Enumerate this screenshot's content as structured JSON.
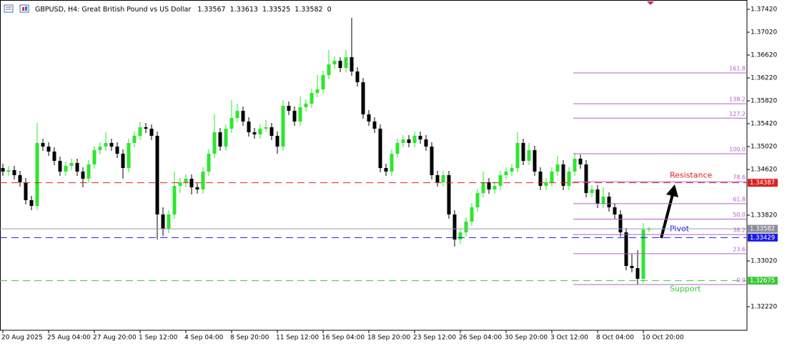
{
  "chart_data": {
    "type": "candlestick",
    "title": "GBPUSD, H4:  Great British Pound vs US Dollar",
    "spread": 0,
    "up_color": "#2ee62e",
    "down_color": "#000000",
    "ylim": [
      1.31808,
      1.37583
    ],
    "yticks": [
      {
        "value": 1.3742,
        "label": "1.37420"
      },
      {
        "value": 1.3702,
        "label": "1.37020"
      },
      {
        "value": 1.3662,
        "label": "1.36620"
      },
      {
        "value": 1.3622,
        "label": "1.36220"
      },
      {
        "value": 1.3582,
        "label": "1.35820"
      },
      {
        "value": 1.3542,
        "label": "1.35420"
      },
      {
        "value": 1.3502,
        "label": "1.35020"
      },
      {
        "value": 1.3462,
        "label": "1.34620"
      },
      {
        "value": 1.3382,
        "label": "1.33820"
      },
      {
        "value": 1.3302,
        "label": "1.33020"
      },
      {
        "value": 1.3222,
        "label": "1.32220"
      }
    ],
    "xticks": [
      {
        "value": 0,
        "label": "20 Aug 2025"
      },
      {
        "value": 8,
        "label": "25 Aug 04:00"
      },
      {
        "value": 16,
        "label": "27 Aug 20:00"
      },
      {
        "value": 24,
        "label": "1 Sep 12:00"
      },
      {
        "value": 32,
        "label": "4 Sep 04:00"
      },
      {
        "value": 40,
        "label": "8 Sep 20:00"
      },
      {
        "value": 48,
        "label": "11 Sep 12:00"
      },
      {
        "value": 56,
        "label": "16 Sep 04:00"
      },
      {
        "value": 64,
        "label": "18 Sep 20:00"
      },
      {
        "value": 72,
        "label": "23 Sep 12:00"
      },
      {
        "value": 80,
        "label": "26 Sep 04:00"
      },
      {
        "value": 88,
        "label": "30 Sep 20:00"
      },
      {
        "value": 96,
        "label": "3 Oct 12:00"
      },
      {
        "value": 104,
        "label": "8 Oct 04:00"
      },
      {
        "value": 112,
        "label": "10 Oct 20:00"
      }
    ],
    "candles": [
      [
        1.34645,
        1.3472,
        1.34508,
        1.34583
      ],
      [
        1.34583,
        1.34683,
        1.34508,
        1.34608
      ],
      [
        1.34608,
        1.34683,
        1.34445,
        1.3452
      ],
      [
        1.3452,
        1.34595,
        1.3432,
        1.34395
      ],
      [
        1.34395,
        1.3447,
        1.34008,
        1.34083
      ],
      [
        1.34083,
        1.34158,
        1.33908,
        1.33983
      ],
      [
        1.33983,
        1.35433,
        1.33908,
        1.35083
      ],
      [
        1.35083,
        1.35158,
        1.34945,
        1.3502
      ],
      [
        1.3502,
        1.35095,
        1.34858,
        1.34933
      ],
      [
        1.34933,
        1.35008,
        1.34695,
        1.3477
      ],
      [
        1.3477,
        1.34845,
        1.34508,
        1.34583
      ],
      [
        1.34583,
        1.34758,
        1.34508,
        1.34683
      ],
      [
        1.34683,
        1.34808,
        1.34608,
        1.34733
      ],
      [
        1.34733,
        1.34808,
        1.34508,
        1.34583
      ],
      [
        1.34583,
        1.34658,
        1.34308,
        1.34458
      ],
      [
        1.34458,
        1.34783,
        1.34383,
        1.34708
      ],
      [
        1.34708,
        1.35033,
        1.34633,
        1.34958
      ],
      [
        1.34958,
        1.35095,
        1.34883,
        1.3502
      ],
      [
        1.3502,
        1.3527,
        1.34945,
        1.35083
      ],
      [
        1.35083,
        1.35158,
        1.34945,
        1.3502
      ],
      [
        1.3502,
        1.35095,
        1.3482,
        1.34895
      ],
      [
        1.34895,
        1.3497,
        1.34458,
        1.34645
      ],
      [
        1.34645,
        1.35158,
        1.3457,
        1.35083
      ],
      [
        1.35083,
        1.35283,
        1.35008,
        1.35208
      ],
      [
        1.35208,
        1.35458,
        1.35133,
        1.35358
      ],
      [
        1.35358,
        1.35433,
        1.35258,
        1.35333
      ],
      [
        1.35333,
        1.35408,
        1.35133,
        1.35208
      ],
      [
        1.35208,
        1.35283,
        1.33395,
        1.33833
      ],
      [
        1.33833,
        1.33958,
        1.33458,
        1.33583
      ],
      [
        1.33583,
        1.33908,
        1.33508,
        1.33833
      ],
      [
        1.33833,
        1.34583,
        1.33758,
        1.34333
      ],
      [
        1.34333,
        1.3447,
        1.34208,
        1.34395
      ],
      [
        1.34395,
        1.34533,
        1.34308,
        1.34458
      ],
      [
        1.34458,
        1.34533,
        1.34183,
        1.34308
      ],
      [
        1.34308,
        1.34383,
        1.34195,
        1.3427
      ],
      [
        1.3427,
        1.34658,
        1.34195,
        1.34583
      ],
      [
        1.34583,
        1.3497,
        1.34508,
        1.34895
      ],
      [
        1.34895,
        1.35583,
        1.3482,
        1.3527
      ],
      [
        1.3527,
        1.35345,
        1.34945,
        1.3502
      ],
      [
        1.3502,
        1.35408,
        1.34945,
        1.35333
      ],
      [
        1.35333,
        1.35833,
        1.35258,
        1.3552
      ],
      [
        1.3552,
        1.3577,
        1.35445,
        1.35645
      ],
      [
        1.35645,
        1.3572,
        1.35383,
        1.35458
      ],
      [
        1.35458,
        1.35533,
        1.35195,
        1.3527
      ],
      [
        1.3527,
        1.35345,
        1.35158,
        1.35233
      ],
      [
        1.35233,
        1.35408,
        1.35158,
        1.35333
      ],
      [
        1.35333,
        1.35483,
        1.35283,
        1.35358
      ],
      [
        1.35358,
        1.35433,
        1.35133,
        1.35208
      ],
      [
        1.35208,
        1.35283,
        1.34895,
        1.3502
      ],
      [
        1.3502,
        1.35833,
        1.34945,
        1.35733
      ],
      [
        1.35733,
        1.35808,
        1.3557,
        1.35645
      ],
      [
        1.35645,
        1.3572,
        1.35383,
        1.35458
      ],
      [
        1.35458,
        1.35895,
        1.35383,
        1.35708
      ],
      [
        1.35708,
        1.35845,
        1.35633,
        1.3577
      ],
      [
        1.3577,
        1.36033,
        1.35695,
        1.35958
      ],
      [
        1.35958,
        1.3627,
        1.35883,
        1.3602
      ],
      [
        1.3602,
        1.36345,
        1.35945,
        1.3627
      ],
      [
        1.3627,
        1.36708,
        1.36195,
        1.36458
      ],
      [
        1.36458,
        1.36595,
        1.36383,
        1.3652
      ],
      [
        1.3652,
        1.36583,
        1.3632,
        1.36395
      ],
      [
        1.36395,
        1.36708,
        1.3632,
        1.36583
      ],
      [
        1.36583,
        1.3727,
        1.36258,
        1.36333
      ],
      [
        1.36333,
        1.36408,
        1.3607,
        1.36145
      ],
      [
        1.36145,
        1.3622,
        1.35508,
        1.35583
      ],
      [
        1.35583,
        1.35658,
        1.35383,
        1.35458
      ],
      [
        1.35458,
        1.35533,
        1.35258,
        1.35333
      ],
      [
        1.35333,
        1.35408,
        1.3457,
        1.34645
      ],
      [
        1.34645,
        1.3472,
        1.34508,
        1.34583
      ],
      [
        1.34583,
        1.3497,
        1.34508,
        1.34895
      ],
      [
        1.34895,
        1.35158,
        1.3482,
        1.35083
      ],
      [
        1.35083,
        1.3522,
        1.35008,
        1.35145
      ],
      [
        1.35145,
        1.3522,
        1.35008,
        1.35083
      ],
      [
        1.35083,
        1.35283,
        1.35008,
        1.35208
      ],
      [
        1.35208,
        1.35283,
        1.3507,
        1.35145
      ],
      [
        1.35145,
        1.3522,
        1.34945,
        1.3502
      ],
      [
        1.3502,
        1.35095,
        1.34445,
        1.3452
      ],
      [
        1.3452,
        1.34595,
        1.3432,
        1.34395
      ],
      [
        1.34395,
        1.34595,
        1.3432,
        1.3452
      ],
      [
        1.3452,
        1.34595,
        1.33758,
        1.33833
      ],
      [
        1.33833,
        1.33908,
        1.3327,
        1.33395
      ],
      [
        1.33395,
        1.33595,
        1.3332,
        1.3352
      ],
      [
        1.3352,
        1.33783,
        1.33445,
        1.33708
      ],
      [
        1.33708,
        1.34033,
        1.33633,
        1.33958
      ],
      [
        1.33958,
        1.34283,
        1.33883,
        1.34208
      ],
      [
        1.34208,
        1.34583,
        1.34133,
        1.34395
      ],
      [
        1.34395,
        1.3447,
        1.34195,
        1.3427
      ],
      [
        1.3427,
        1.34408,
        1.34195,
        1.34333
      ],
      [
        1.34333,
        1.34595,
        1.34258,
        1.3452
      ],
      [
        1.3452,
        1.34658,
        1.34445,
        1.34583
      ],
      [
        1.34583,
        1.3472,
        1.34508,
        1.34645
      ],
      [
        1.34645,
        1.3527,
        1.3457,
        1.35083
      ],
      [
        1.35083,
        1.35158,
        1.34695,
        1.3477
      ],
      [
        1.3477,
        1.35083,
        1.34695,
        1.34958
      ],
      [
        1.34958,
        1.35033,
        1.34508,
        1.34583
      ],
      [
        1.34583,
        1.34658,
        1.34258,
        1.34333
      ],
      [
        1.34333,
        1.3447,
        1.34258,
        1.34395
      ],
      [
        1.34395,
        1.34658,
        1.3432,
        1.34583
      ],
      [
        1.34583,
        1.34858,
        1.34508,
        1.34708
      ],
      [
        1.34708,
        1.34783,
        1.34258,
        1.34333
      ],
      [
        1.34333,
        1.34658,
        1.34258,
        1.34583
      ],
      [
        1.34583,
        1.34908,
        1.34508,
        1.34808
      ],
      [
        1.34808,
        1.34883,
        1.34633,
        1.34708
      ],
      [
        1.34708,
        1.34783,
        1.34133,
        1.34208
      ],
      [
        1.34208,
        1.34345,
        1.34133,
        1.3427
      ],
      [
        1.3427,
        1.34345,
        1.33945,
        1.3402
      ],
      [
        1.3402,
        1.34308,
        1.33945,
        1.34145
      ],
      [
        1.34145,
        1.3422,
        1.33883,
        1.33958
      ],
      [
        1.33958,
        1.34033,
        1.33758,
        1.33833
      ],
      [
        1.33833,
        1.33908,
        1.33445,
        1.3352
      ],
      [
        1.3352,
        1.33595,
        1.32858,
        1.32933
      ],
      [
        1.32933,
        1.33145,
        1.3282,
        1.32895
      ],
      [
        1.32895,
        1.33208,
        1.32608,
        1.32708
      ],
      [
        1.32708,
        1.33683,
        1.32633,
        1.33567
      ],
      [
        1.33567,
        1.33613,
        1.33525,
        1.33582
      ]
    ],
    "levels": [
      {
        "name": "Resistance",
        "value": 1.34387,
        "color": "#dc2020"
      },
      {
        "name": "Pivot",
        "value": 1.33429,
        "color": "#1a1ae6"
      },
      {
        "name": "Support",
        "value": 1.32675,
        "color": "#3cc83c"
      }
    ],
    "fib": {
      "low": 1.32608,
      "high": 1.34895,
      "color": "#b060c8",
      "levels": [
        161.8,
        138.2,
        127.2,
        {
          "value": 100,
          "label": "100.0"
        },
        78.6,
        61.8,
        {
          "value": 50,
          "label": "50.0"
        },
        38.2,
        23.6,
        {
          "value": 0,
          "label": "0.0"
        }
      ]
    }
  }
}
